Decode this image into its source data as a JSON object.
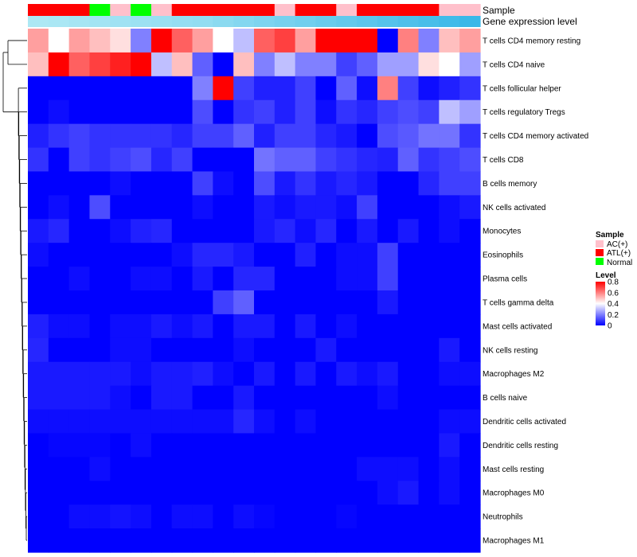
{
  "chart_data": {
    "type": "heatmap",
    "annotation_tracks": [
      {
        "name": "Sample",
        "label": "Sample"
      },
      {
        "name": "Gene expression level",
        "label": "Gene expression level"
      }
    ],
    "sample_groups": [
      "ATL",
      "ATL",
      "ATL",
      "Normal",
      "AC",
      "Normal",
      "AC",
      "ATL",
      "ATL",
      "ATL",
      "ATL",
      "ATL",
      "AC",
      "ATL",
      "ATL",
      "AC",
      "ATL",
      "ATL",
      "ATL",
      "ATL",
      "AC",
      "AC"
    ],
    "expression_annotation": [
      0.02,
      0.04,
      0.06,
      0.08,
      0.1,
      0.12,
      0.14,
      0.16,
      0.18,
      0.22,
      0.26,
      0.3,
      0.34,
      0.38,
      0.42,
      0.46,
      0.5,
      0.54,
      0.58,
      0.62,
      0.66,
      0.7
    ],
    "rows": [
      "T cells CD4 memory resting",
      "T cells CD4 naive",
      "T cells follicular helper",
      "T cells regulatory  Tregs",
      "T cells CD4 memory activated",
      "T cells CD8",
      "B cells memory",
      "NK cells activated",
      "Monocytes",
      "Eosinophils",
      "Plasma cells",
      "T cells gamma delta",
      "Mast cells activated",
      "NK cells resting",
      "Macrophages M2",
      "B cells naive",
      "Dendritic cells activated",
      "Dendritic cells resting",
      "Mast cells resting",
      "Macrophages M0",
      "Neutrophils",
      "Macrophages M1"
    ],
    "values": [
      [
        0.55,
        0.4,
        0.55,
        0.5,
        0.45,
        0.2,
        0.8,
        0.65,
        0.55,
        0.4,
        0.3,
        0.65,
        0.7,
        0.55,
        0.8,
        0.8,
        0.8,
        0.0,
        0.6,
        0.2,
        0.5,
        0.55
      ],
      [
        0.5,
        0.8,
        0.65,
        0.7,
        0.75,
        0.8,
        0.3,
        0.5,
        0.15,
        0.0,
        0.5,
        0.2,
        0.3,
        0.2,
        0.2,
        0.1,
        0.15,
        0.25,
        0.25,
        0.45,
        0.4,
        0.25
      ],
      [
        0.0,
        0.0,
        0.0,
        0.0,
        0.0,
        0.0,
        0.0,
        0.0,
        0.2,
        0.8,
        0.1,
        0.05,
        0.05,
        0.1,
        0.0,
        0.15,
        0.02,
        0.6,
        0.1,
        0.02,
        0.05,
        0.08
      ],
      [
        0.0,
        0.02,
        0.0,
        0.0,
        0.0,
        0.0,
        0.0,
        0.0,
        0.12,
        0.0,
        0.08,
        0.1,
        0.05,
        0.1,
        0.02,
        0.08,
        0.06,
        0.1,
        0.12,
        0.1,
        0.3,
        0.25
      ],
      [
        0.05,
        0.08,
        0.1,
        0.08,
        0.08,
        0.08,
        0.08,
        0.06,
        0.1,
        0.1,
        0.15,
        0.05,
        0.1,
        0.1,
        0.06,
        0.04,
        0.0,
        0.12,
        0.14,
        0.18,
        0.18,
        0.08
      ],
      [
        0.08,
        0.0,
        0.1,
        0.08,
        0.1,
        0.12,
        0.06,
        0.1,
        0.0,
        0.0,
        0.0,
        0.18,
        0.15,
        0.15,
        0.1,
        0.08,
        0.06,
        0.05,
        0.15,
        0.08,
        0.1,
        0.12
      ],
      [
        0.0,
        0.0,
        0.0,
        0.0,
        0.02,
        0.0,
        0.0,
        0.0,
        0.1,
        0.02,
        0.0,
        0.12,
        0.04,
        0.08,
        0.04,
        0.06,
        0.04,
        0.0,
        0.0,
        0.06,
        0.1,
        0.1
      ],
      [
        0.0,
        0.02,
        0.0,
        0.12,
        0.0,
        0.0,
        0.0,
        0.0,
        0.02,
        0.0,
        0.0,
        0.04,
        0.02,
        0.04,
        0.04,
        0.02,
        0.1,
        0.0,
        0.0,
        0.0,
        0.02,
        0.04
      ],
      [
        0.04,
        0.06,
        0.0,
        0.0,
        0.02,
        0.05,
        0.06,
        0.0,
        0.0,
        0.0,
        0.0,
        0.04,
        0.06,
        0.02,
        0.06,
        0.0,
        0.04,
        0.0,
        0.04,
        0.0,
        0.02,
        0.0
      ],
      [
        0.02,
        0.0,
        0.0,
        0.0,
        0.0,
        0.0,
        0.0,
        0.02,
        0.06,
        0.06,
        0.04,
        0.0,
        0.0,
        0.05,
        0.0,
        0.02,
        0.02,
        0.1,
        0.0,
        0.0,
        0.0,
        0.0
      ],
      [
        0.0,
        0.0,
        0.02,
        0.0,
        0.0,
        0.02,
        0.02,
        0.0,
        0.04,
        0.0,
        0.06,
        0.06,
        0.0,
        0.0,
        0.0,
        0.02,
        0.02,
        0.1,
        0.0,
        0.0,
        0.0,
        0.0
      ],
      [
        0.0,
        0.0,
        0.0,
        0.0,
        0.0,
        0.0,
        0.0,
        0.0,
        0.0,
        0.1,
        0.15,
        0.0,
        0.0,
        0.0,
        0.0,
        0.0,
        0.0,
        0.04,
        0.0,
        0.0,
        0.0,
        0.0
      ],
      [
        0.05,
        0.02,
        0.02,
        0.0,
        0.02,
        0.02,
        0.04,
        0.02,
        0.04,
        0.0,
        0.04,
        0.04,
        0.0,
        0.04,
        0.0,
        0.02,
        0.0,
        0.0,
        0.0,
        0.0,
        0.0,
        0.0
      ],
      [
        0.06,
        0.0,
        0.0,
        0.0,
        0.02,
        0.02,
        0.0,
        0.0,
        0.0,
        0.0,
        0.02,
        0.0,
        0.0,
        0.0,
        0.04,
        0.0,
        0.0,
        0.0,
        0.0,
        0.0,
        0.04,
        0.0
      ],
      [
        0.04,
        0.04,
        0.04,
        0.04,
        0.04,
        0.02,
        0.04,
        0.04,
        0.05,
        0.02,
        0.0,
        0.04,
        0.0,
        0.04,
        0.0,
        0.04,
        0.02,
        0.04,
        0.0,
        0.0,
        0.02,
        0.02
      ],
      [
        0.04,
        0.04,
        0.04,
        0.04,
        0.02,
        0.0,
        0.04,
        0.04,
        0.0,
        0.0,
        0.04,
        0.0,
        0.0,
        0.0,
        0.0,
        0.0,
        0.0,
        0.02,
        0.0,
        0.0,
        0.0,
        0.0
      ],
      [
        0.02,
        0.02,
        0.02,
        0.02,
        0.02,
        0.02,
        0.02,
        0.02,
        0.02,
        0.02,
        0.06,
        0.02,
        0.0,
        0.02,
        0.0,
        0.0,
        0.0,
        0.0,
        0.0,
        0.0,
        0.02,
        0.02
      ],
      [
        0.0,
        0.01,
        0.01,
        0.01,
        0.0,
        0.02,
        0.0,
        0.0,
        0.0,
        0.0,
        0.0,
        0.0,
        0.0,
        0.0,
        0.0,
        0.0,
        0.0,
        0.0,
        0.0,
        0.0,
        0.04,
        0.0
      ],
      [
        0.0,
        0.0,
        0.0,
        0.02,
        0.0,
        0.0,
        0.0,
        0.0,
        0.0,
        0.0,
        0.0,
        0.0,
        0.0,
        0.0,
        0.0,
        0.0,
        0.02,
        0.02,
        0.02,
        0.0,
        0.02,
        0.0
      ],
      [
        0.0,
        0.0,
        0.0,
        0.0,
        0.0,
        0.0,
        0.0,
        0.0,
        0.0,
        0.0,
        0.0,
        0.0,
        0.0,
        0.0,
        0.0,
        0.0,
        0.0,
        0.02,
        0.04,
        0.0,
        0.02,
        0.0
      ],
      [
        0.0,
        0.0,
        0.02,
        0.02,
        0.03,
        0.02,
        0.0,
        0.02,
        0.02,
        0.0,
        0.02,
        0.01,
        0.0,
        0.0,
        0.0,
        0.01,
        0.0,
        0.0,
        0.0,
        0.0,
        0.0,
        0.0
      ],
      [
        0.0,
        0.0,
        0.0,
        0.0,
        0.0,
        0.0,
        0.0,
        0.0,
        0.0,
        0.0,
        0.0,
        0.0,
        0.0,
        0.0,
        0.0,
        0.0,
        0.0,
        0.0,
        0.0,
        0.0,
        0.0,
        0.0
      ]
    ],
    "legend": {
      "sample": {
        "title": "Sample",
        "entries": [
          {
            "key": "AC",
            "label": "AC(+)",
            "color": "#ffc0cb"
          },
          {
            "key": "ATL",
            "label": "ATL(+)",
            "color": "#ff0000"
          },
          {
            "key": "Normal",
            "label": "Normal",
            "color": "#00ff00"
          }
        ]
      },
      "level": {
        "title": "Level",
        "ticks": [
          {
            "value": 0.8,
            "label": "0.8"
          },
          {
            "value": 0.6,
            "label": "0.6"
          },
          {
            "value": 0.4,
            "label": "0.4"
          },
          {
            "value": 0.2,
            "label": "0.2"
          },
          {
            "value": 0.0,
            "label": "0"
          }
        ]
      }
    },
    "color_scale": {
      "low": "#0000ff",
      "mid": "#ffffff",
      "high": "#ff0000",
      "range": [
        0,
        0.8
      ]
    },
    "annotation_colors": {
      "expression_low": "#ade8f4",
      "expression_high": "#3ab8e8"
    }
  }
}
